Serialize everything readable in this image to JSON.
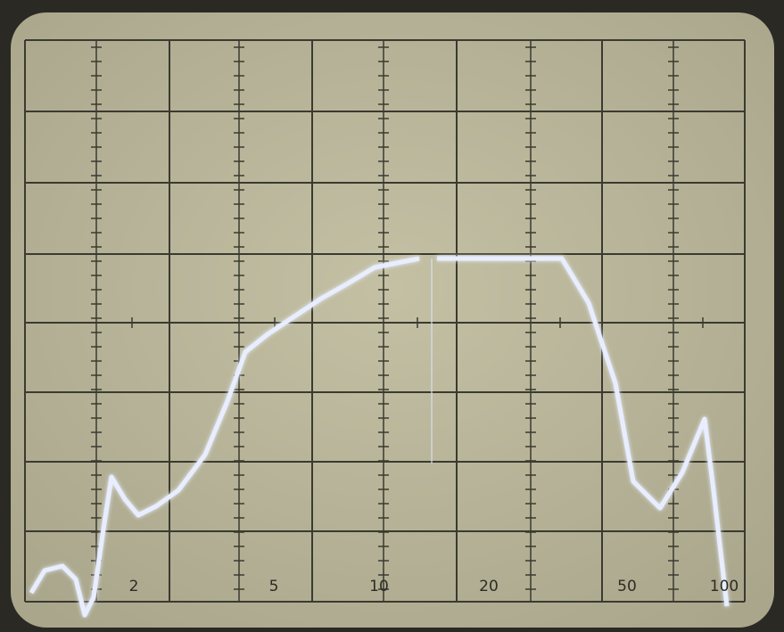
{
  "scale_labels": [
    "2",
    "5",
    "10",
    "20",
    "50",
    "100"
  ]
}
